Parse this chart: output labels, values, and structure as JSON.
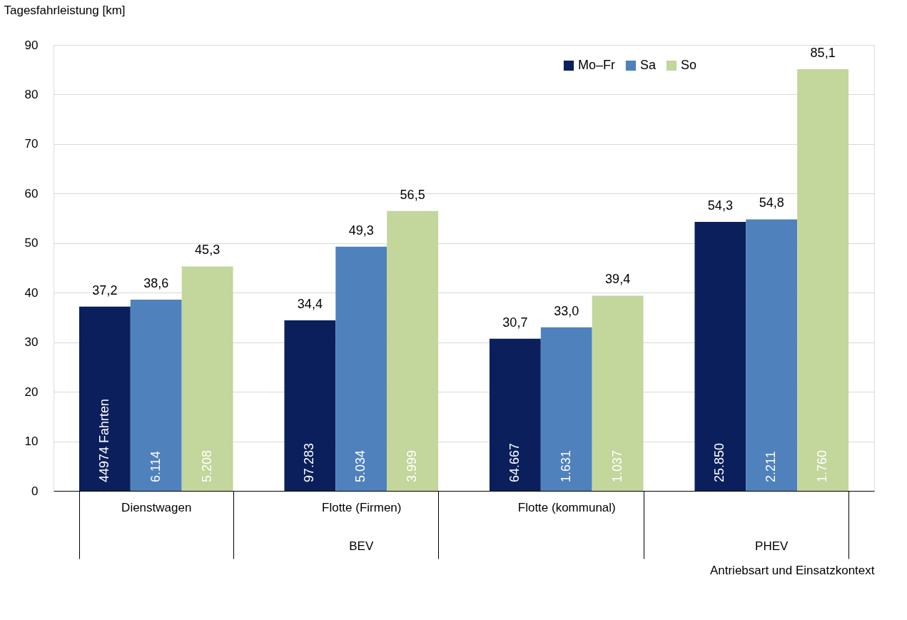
{
  "chart_data": {
    "type": "bar",
    "ylabel": "Tagesfahrleistung [km]",
    "xlabel": "Antriebsart und Einsatzkontext",
    "categories": [
      "Dienstwagen",
      "Flotte (Firmen)",
      "Flotte (kommunal)",
      null
    ],
    "series": [
      {
        "name": "Mo–Fr",
        "color": "#0b1f5c",
        "values": [
          37.2,
          34.4,
          30.7,
          54.3
        ],
        "value_labels": [
          "37,2",
          "34,4",
          "30,7",
          "54,3"
        ]
      },
      {
        "name": "Sa",
        "color": "#4f81bd",
        "values": [
          38.6,
          49.3,
          33.0,
          54.8
        ],
        "value_labels": [
          "38,6",
          "49,3",
          "33,0",
          "54,8"
        ]
      },
      {
        "name": "So",
        "color": "#c3d69b",
        "values": [
          45.3,
          56.5,
          39.4,
          85.1
        ],
        "value_labels": [
          "45,3",
          "56,5",
          "39,4",
          "85,1"
        ]
      }
    ],
    "annotations": [
      "44974 Fahrten",
      "6.114",
      "5.208",
      "97.283",
      "5.034",
      "3.999",
      "64.667",
      "1.631",
      "1.037",
      "25.850",
      "2.211",
      "1.760",
      "BEV",
      "PHEV"
    ],
    "ylim": [
      0,
      90
    ],
    "yticks": [
      0,
      10,
      20,
      30,
      40,
      50,
      60,
      70,
      80,
      90
    ],
    "grid": "y",
    "legend": "top right"
  }
}
